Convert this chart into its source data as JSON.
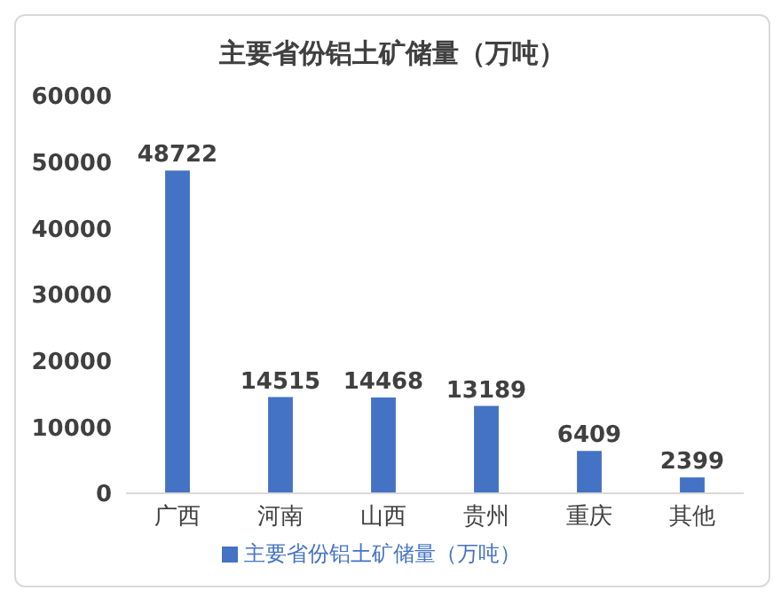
{
  "chart_data": {
    "type": "bar",
    "title": "主要省份铝土矿储量（万吨）",
    "categories": [
      "广西",
      "河南",
      "山西",
      "贵州",
      "重庆",
      "其他"
    ],
    "series": [
      {
        "name": "主要省份铝土矿储量（万吨）",
        "color": "#4472c4",
        "values": [
          48722,
          14515,
          14468,
          13189,
          6409,
          2399
        ]
      }
    ],
    "ylim": [
      0,
      60000
    ],
    "yticks": [
      0,
      10000,
      20000,
      30000,
      40000,
      50000,
      60000
    ],
    "grid": false,
    "legend": "bottom",
    "data_labels": true
  }
}
